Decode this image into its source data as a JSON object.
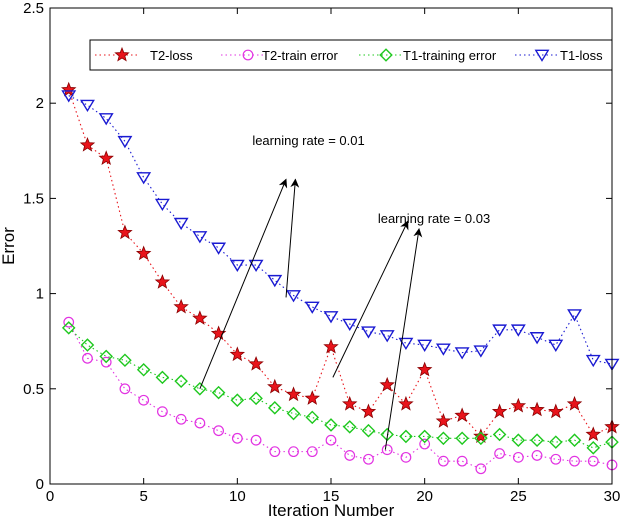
{
  "chart_data": {
    "type": "line",
    "xlabel": "Iteration Number",
    "ylabel": "Error",
    "xlim": [
      0,
      30
    ],
    "ylim": [
      0,
      2.5
    ],
    "xticks": [
      0,
      5,
      10,
      15,
      20,
      25,
      30
    ],
    "yticks": [
      0,
      0.5,
      1,
      1.5,
      2,
      2.5
    ],
    "legend_position": "top",
    "x": [
      1,
      2,
      3,
      4,
      5,
      6,
      7,
      8,
      9,
      10,
      11,
      12,
      13,
      14,
      15,
      16,
      17,
      18,
      19,
      20,
      21,
      22,
      23,
      24,
      25,
      26,
      27,
      28,
      29,
      30
    ],
    "series": [
      {
        "name": "T2-loss",
        "color": "#e8141b",
        "marker": "star",
        "values": [
          2.07,
          1.78,
          1.71,
          1.32,
          1.21,
          1.06,
          0.93,
          0.87,
          0.79,
          0.68,
          0.63,
          0.51,
          0.47,
          0.45,
          0.72,
          0.42,
          0.38,
          0.52,
          0.42,
          0.6,
          0.33,
          0.36,
          0.25,
          0.38,
          0.41,
          0.39,
          0.38,
          0.42,
          0.26,
          0.3
        ]
      },
      {
        "name": "T2-train error",
        "color": "#e233e2",
        "marker": "circle",
        "values": [
          0.85,
          0.66,
          0.64,
          0.5,
          0.44,
          0.38,
          0.34,
          0.32,
          0.28,
          0.24,
          0.23,
          0.17,
          0.17,
          0.17,
          0.23,
          0.15,
          0.13,
          0.18,
          0.14,
          0.21,
          0.12,
          0.12,
          0.08,
          0.16,
          0.14,
          0.15,
          0.13,
          0.12,
          0.12,
          0.1
        ]
      },
      {
        "name": "T1-training error",
        "color": "#1ec81e",
        "marker": "diamond",
        "values": [
          0.82,
          0.73,
          0.67,
          0.65,
          0.6,
          0.56,
          0.54,
          0.5,
          0.48,
          0.44,
          0.45,
          0.4,
          0.37,
          0.35,
          0.31,
          0.3,
          0.28,
          0.26,
          0.25,
          0.25,
          0.24,
          0.24,
          0.24,
          0.26,
          0.23,
          0.23,
          0.22,
          0.23,
          0.19,
          0.22
        ]
      },
      {
        "name": "T1-loss",
        "color": "#1a1ad2",
        "marker": "triangle-down",
        "values": [
          2.04,
          1.99,
          1.92,
          1.8,
          1.61,
          1.47,
          1.37,
          1.3,
          1.24,
          1.15,
          1.15,
          1.07,
          0.99,
          0.93,
          0.88,
          0.84,
          0.8,
          0.78,
          0.74,
          0.73,
          0.71,
          0.69,
          0.7,
          0.81,
          0.81,
          0.77,
          0.73,
          0.89,
          0.65,
          0.63
        ]
      }
    ],
    "annotations": [
      {
        "text": "learning rate = 0.01",
        "text_anchor": [
          13.8,
          1.78
        ],
        "arrows": [
          {
            "from": [
              8,
              0.5
            ],
            "to": [
              12.6,
              1.6
            ]
          },
          {
            "from": [
              12.6,
              0.98
            ],
            "to": [
              13.1,
              1.6
            ]
          }
        ]
      },
      {
        "text": "learning rate = 0.03",
        "text_anchor": [
          20.5,
          1.37
        ],
        "arrows": [
          {
            "from": [
              15.1,
              0.56
            ],
            "to": [
              19.1,
              1.38
            ]
          },
          {
            "from": [
              17.9,
              0.18
            ],
            "to": [
              19.7,
              1.34
            ]
          }
        ]
      }
    ]
  }
}
